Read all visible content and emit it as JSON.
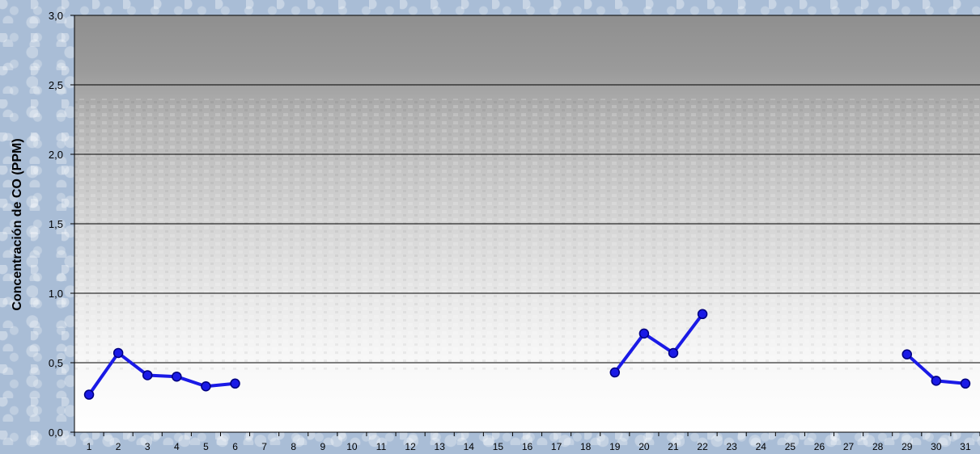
{
  "chart_data": {
    "type": "line",
    "title": "",
    "ylabel": "Concentración de CO (PPM)",
    "xlabel": "",
    "ylim": [
      0,
      3
    ],
    "y_ticks": [
      "0,0",
      "0,5",
      "1,0",
      "1,5",
      "2,0",
      "2,5",
      "3,0"
    ],
    "y_tick_values": [
      0,
      0.5,
      1.0,
      1.5,
      2.0,
      2.5,
      3.0
    ],
    "categories": [
      "1",
      "2",
      "3",
      "4",
      "5",
      "6",
      "7",
      "8",
      "9",
      "10",
      "11",
      "12",
      "13",
      "14",
      "15",
      "16",
      "17",
      "18",
      "19",
      "20",
      "21",
      "22",
      "23",
      "24",
      "25",
      "26",
      "27",
      "28",
      "29",
      "30",
      "31"
    ],
    "series": [
      {
        "values": [
          0.27,
          0.57,
          0.41,
          0.4,
          0.33,
          0.35,
          null,
          null,
          null,
          null,
          null,
          null,
          null,
          null,
          null,
          null,
          null,
          null,
          0.43,
          0.71,
          0.57,
          0.85,
          null,
          null,
          null,
          null,
          null,
          null,
          0.56,
          0.37,
          0.35
        ],
        "color": "#1a1ae6"
      }
    ],
    "grid": true,
    "legend": "none",
    "colors": {
      "line": "#1a1ae6",
      "marker_fill": "#1a1ae6",
      "marker_stroke": "#000080",
      "gridline": "#000000"
    }
  }
}
